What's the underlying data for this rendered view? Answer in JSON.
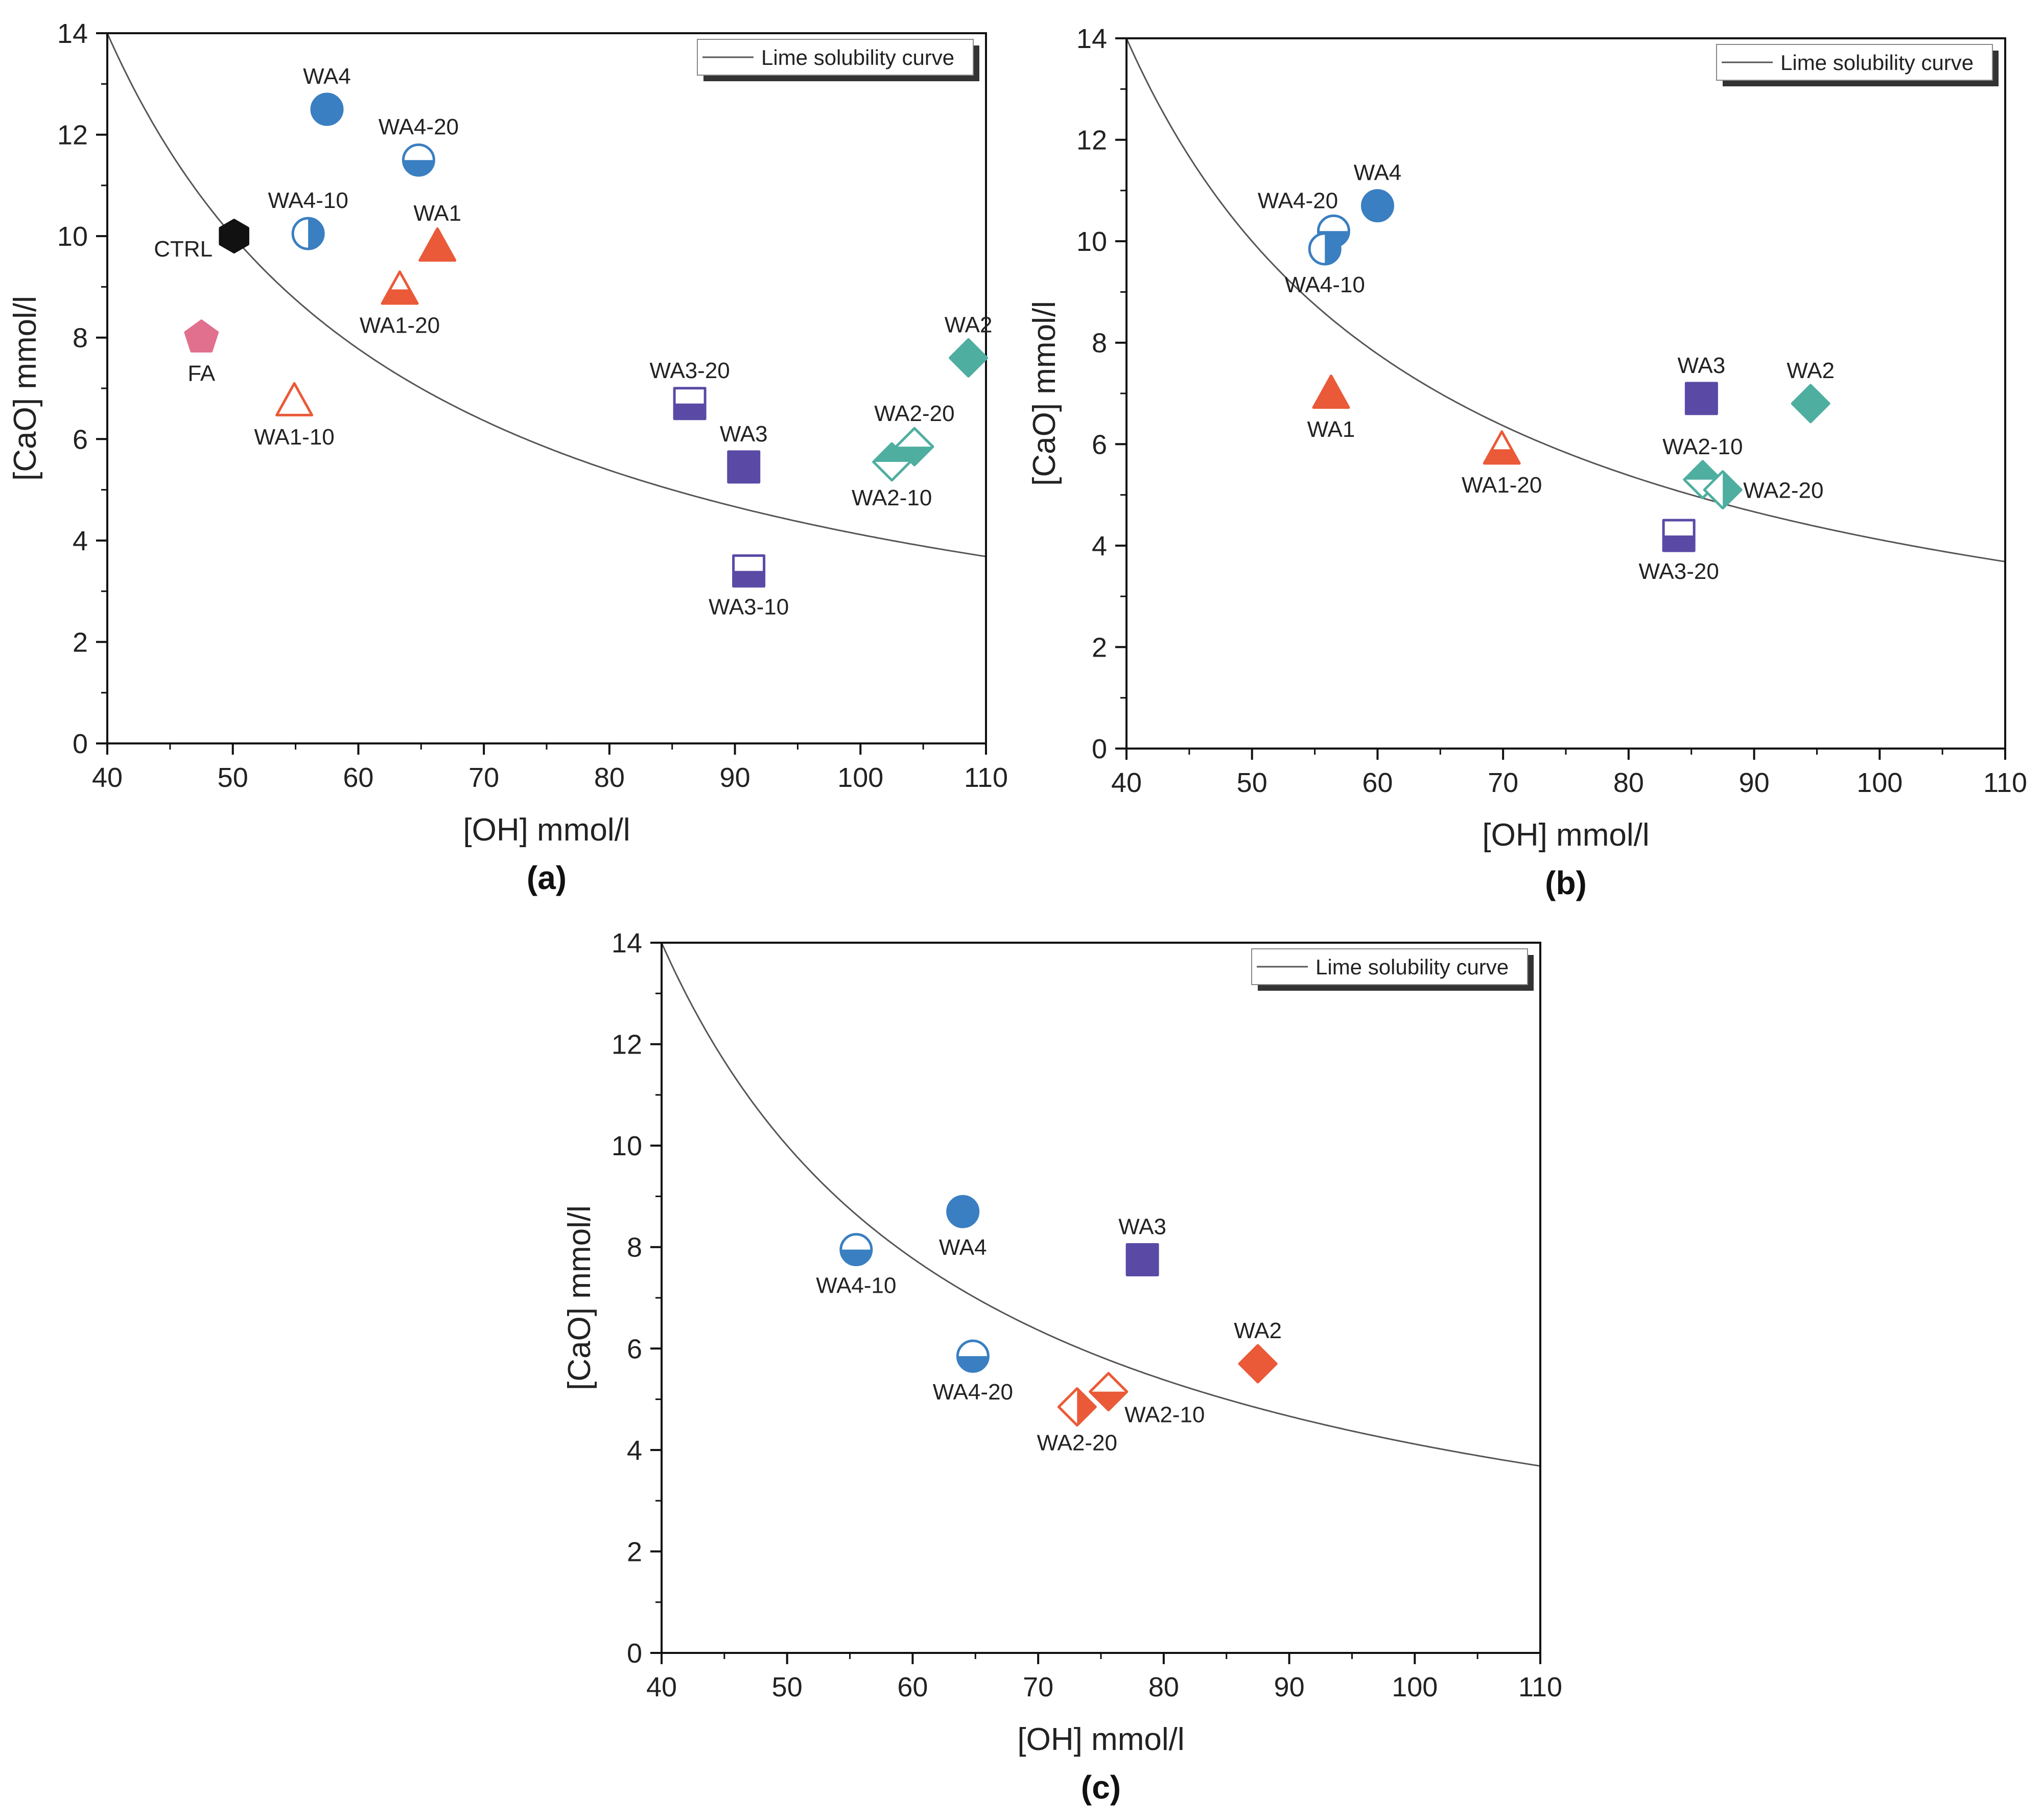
{
  "colors": {
    "blue": "#3a7fc1",
    "red": "#ea5a38",
    "purple": "#5a4aa6",
    "teal": "#4eaea0",
    "pink": "#e0708e",
    "black": "#111111",
    "curve": "#555555"
  },
  "chart_data": [
    {
      "panel": "(a)",
      "type": "scatter",
      "xlabel": "[OH] mmol/l",
      "ylabel": "[CaO] mmol/l",
      "xlim": [
        40,
        110
      ],
      "ylim": [
        0,
        14
      ],
      "xticks": [
        "40",
        "50",
        "60",
        "70",
        "80",
        "90",
        "100",
        "110"
      ],
      "yticks": [
        "0",
        "2",
        "4",
        "6",
        "8",
        "10",
        "12",
        "14"
      ],
      "legend": {
        "label": "Lime solubility curve",
        "placement": "top-right"
      },
      "curve": {
        "name": "Lime solubility curve",
        "formula": "CaO = 350 / (OH - 15)"
      },
      "points": [
        {
          "label": "CTRL",
          "x": 50.1,
          "y": 10.0,
          "marker": "hexagon",
          "fill": "full",
          "color": "black",
          "lpos": "left"
        },
        {
          "label": "FA",
          "x": 47.5,
          "y": 8.0,
          "marker": "pentagon",
          "fill": "full",
          "color": "pink",
          "lpos": "below"
        },
        {
          "label": "WA4",
          "x": 57.5,
          "y": 12.5,
          "marker": "circle",
          "fill": "full",
          "color": "blue",
          "lpos": "above"
        },
        {
          "label": "WA4-20",
          "x": 64.8,
          "y": 11.5,
          "marker": "circle",
          "fill": "bottom",
          "color": "blue",
          "lpos": "above"
        },
        {
          "label": "WA4-10",
          "x": 56.0,
          "y": 10.05,
          "marker": "circle",
          "fill": "right",
          "color": "blue",
          "lpos": "above"
        },
        {
          "label": "WA1",
          "x": 66.3,
          "y": 9.8,
          "marker": "triangle",
          "fill": "full",
          "color": "red",
          "lpos": "above"
        },
        {
          "label": "WA1-20",
          "x": 63.3,
          "y": 8.95,
          "marker": "triangle",
          "fill": "bottom",
          "color": "red",
          "lpos": "below"
        },
        {
          "label": "WA1-10",
          "x": 54.9,
          "y": 6.75,
          "marker": "triangle",
          "fill": "none",
          "color": "red",
          "lpos": "below"
        },
        {
          "label": "WA3-20",
          "x": 86.4,
          "y": 6.7,
          "marker": "square",
          "fill": "bottom",
          "color": "purple",
          "lpos": "above"
        },
        {
          "label": "WA3",
          "x": 90.7,
          "y": 5.45,
          "marker": "square",
          "fill": "full",
          "color": "purple",
          "lpos": "above"
        },
        {
          "label": "WA3-10",
          "x": 91.1,
          "y": 3.4,
          "marker": "square",
          "fill": "bottom",
          "color": "purple",
          "lpos": "below"
        },
        {
          "label": "WA2",
          "x": 108.6,
          "y": 7.6,
          "marker": "diamond",
          "fill": "full",
          "color": "teal",
          "lpos": "above"
        },
        {
          "label": "WA2-20",
          "x": 104.3,
          "y": 5.85,
          "marker": "diamond",
          "fill": "bottom",
          "color": "teal",
          "lpos": "above"
        },
        {
          "label": "WA2-10",
          "x": 102.5,
          "y": 5.55,
          "marker": "diamond",
          "fill": "top",
          "color": "teal",
          "lpos": "below"
        }
      ]
    },
    {
      "panel": "(b)",
      "type": "scatter",
      "xlabel": "[OH] mmol/l",
      "ylabel": "[CaO] mmol/l",
      "xlim": [
        40,
        110
      ],
      "ylim": [
        0,
        14
      ],
      "xticks": [
        "40",
        "50",
        "60",
        "70",
        "80",
        "90",
        "100",
        "110"
      ],
      "yticks": [
        "0",
        "2",
        "4",
        "6",
        "8",
        "10",
        "12",
        "14"
      ],
      "legend": {
        "label": "Lime solubility curve",
        "placement": "top-right"
      },
      "curve": {
        "name": "Lime solubility curve",
        "formula": "CaO = 350 / (OH - 15)"
      },
      "points": [
        {
          "label": "WA4",
          "x": 60.0,
          "y": 10.7,
          "marker": "circle",
          "fill": "full",
          "color": "blue",
          "lpos": "above"
        },
        {
          "label": "WA4-20",
          "x": 56.5,
          "y": 10.2,
          "marker": "circle",
          "fill": "bottom",
          "color": "blue",
          "lpos": "aboveleft"
        },
        {
          "label": "WA4-10",
          "x": 55.8,
          "y": 9.85,
          "marker": "circle",
          "fill": "right",
          "color": "blue",
          "lpos": "below"
        },
        {
          "label": "WA1",
          "x": 56.3,
          "y": 7.0,
          "marker": "triangle",
          "fill": "full",
          "color": "red",
          "lpos": "below"
        },
        {
          "label": "WA1-20",
          "x": 69.9,
          "y": 5.9,
          "marker": "triangle",
          "fill": "bottom",
          "color": "red",
          "lpos": "below"
        },
        {
          "label": "WA3",
          "x": 85.8,
          "y": 6.9,
          "marker": "square",
          "fill": "full",
          "color": "purple",
          "lpos": "above"
        },
        {
          "label": "WA3-20",
          "x": 84.0,
          "y": 4.2,
          "marker": "square",
          "fill": "bottom",
          "color": "purple",
          "lpos": "below"
        },
        {
          "label": "WA2",
          "x": 94.5,
          "y": 6.8,
          "marker": "diamond",
          "fill": "full",
          "color": "teal",
          "lpos": "above"
        },
        {
          "label": "WA2-10",
          "x": 85.9,
          "y": 5.3,
          "marker": "diamond",
          "fill": "top",
          "color": "teal",
          "lpos": "above"
        },
        {
          "label": "WA2-20",
          "x": 87.5,
          "y": 5.1,
          "marker": "diamond",
          "fill": "right",
          "color": "teal",
          "lpos": "right"
        }
      ]
    },
    {
      "panel": "(c)",
      "type": "scatter",
      "xlabel": "[OH] mmol/l",
      "ylabel": "[CaO] mmol/l",
      "xlim": [
        40,
        110
      ],
      "ylim": [
        0,
        14
      ],
      "xticks": [
        "40",
        "50",
        "60",
        "70",
        "80",
        "90",
        "100",
        "110"
      ],
      "yticks": [
        "0",
        "2",
        "4",
        "6",
        "8",
        "10",
        "12",
        "14"
      ],
      "legend": {
        "label": "Lime solubility curve",
        "placement": "top-right"
      },
      "curve": {
        "name": "Lime solubility curve",
        "formula": "CaO = 350 / (OH - 15)"
      },
      "points": [
        {
          "label": "WA4",
          "x": 64.0,
          "y": 8.7,
          "marker": "circle",
          "fill": "full",
          "color": "blue",
          "lpos": "below"
        },
        {
          "label": "WA4-10",
          "x": 55.5,
          "y": 7.95,
          "marker": "circle",
          "fill": "bottom",
          "color": "blue",
          "lpos": "below"
        },
        {
          "label": "WA4-20",
          "x": 64.8,
          "y": 5.85,
          "marker": "circle",
          "fill": "bottom",
          "color": "blue",
          "lpos": "below"
        },
        {
          "label": "WA3",
          "x": 78.3,
          "y": 7.75,
          "marker": "square",
          "fill": "full",
          "color": "purple",
          "lpos": "above"
        },
        {
          "label": "WA2",
          "x": 87.5,
          "y": 5.7,
          "marker": "diamond",
          "fill": "full",
          "color": "red",
          "lpos": "above"
        },
        {
          "label": "WA2-10",
          "x": 75.6,
          "y": 5.15,
          "marker": "diamond",
          "fill": "bottom",
          "color": "red",
          "lpos": "belowright"
        },
        {
          "label": "WA2-20",
          "x": 73.1,
          "y": 4.85,
          "marker": "diamond",
          "fill": "right",
          "color": "red",
          "lpos": "below"
        }
      ]
    }
  ]
}
